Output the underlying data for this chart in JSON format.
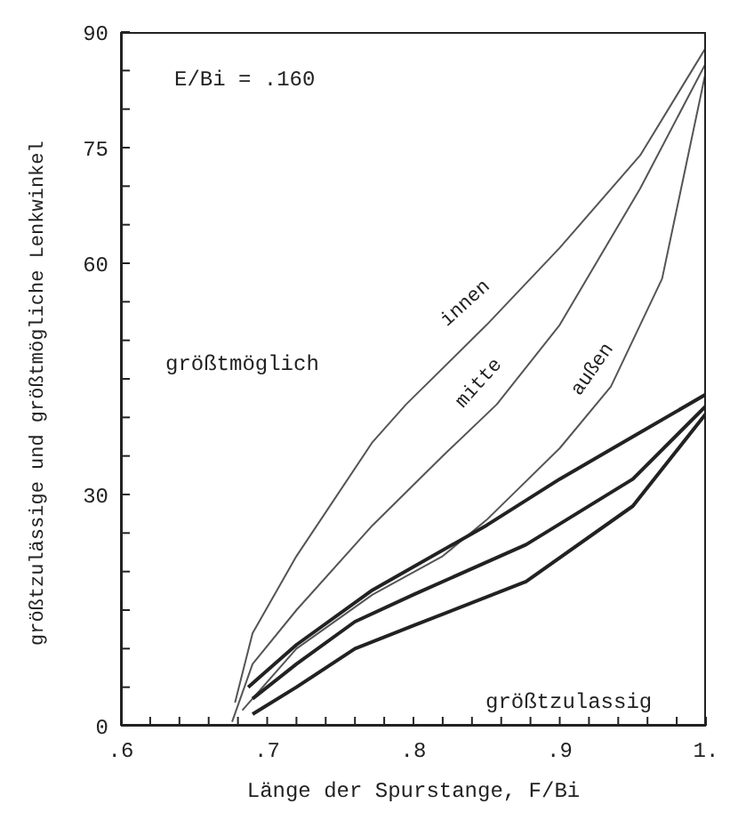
{
  "chart_data": {
    "type": "line",
    "xlabel": "Länge der Spurstange, F/Bi",
    "ylabel": "größtzulässige und größtmögliche Lenkwinkel",
    "xlim": [
      0.6,
      1.0
    ],
    "xticks": [
      {
        "value": 0.6,
        "label": ".6"
      },
      {
        "value": 0.62,
        "label": null
      },
      {
        "value": 0.64,
        "label": null
      },
      {
        "value": 0.66,
        "label": null
      },
      {
        "value": 0.68,
        "label": null
      },
      {
        "value": 0.7,
        "label": ".7"
      },
      {
        "value": 0.72,
        "label": null
      },
      {
        "value": 0.74,
        "label": null
      },
      {
        "value": 0.76,
        "label": null
      },
      {
        "value": 0.78,
        "label": null
      },
      {
        "value": 0.8,
        "label": ".8"
      },
      {
        "value": 0.82,
        "label": null
      },
      {
        "value": 0.84,
        "label": null
      },
      {
        "value": 0.86,
        "label": null
      },
      {
        "value": 0.88,
        "label": null
      },
      {
        "value": 0.9,
        "label": ".9"
      },
      {
        "value": 0.92,
        "label": null
      },
      {
        "value": 0.94,
        "label": null
      },
      {
        "value": 0.96,
        "label": null
      },
      {
        "value": 0.98,
        "label": null
      },
      {
        "value": 1.0,
        "label": "1."
      }
    ],
    "ylim": [
      0,
      90
    ],
    "yticks": [
      0,
      {
        "value": 5,
        "label": null
      },
      {
        "value": 10,
        "label": null
      },
      {
        "value": 15,
        "label": null
      },
      {
        "value": 20,
        "label": null
      },
      {
        "value": 25,
        "label": null
      },
      30,
      {
        "value": 35,
        "label": null
      },
      {
        "value": 40,
        "label": null
      },
      {
        "value": 45,
        "label": null
      },
      {
        "value": 50,
        "label": null
      },
      {
        "value": 55,
        "label": null
      },
      60,
      {
        "value": 65,
        "label": null
      },
      {
        "value": 70,
        "label": null
      },
      75,
      {
        "value": 80,
        "label": null
      },
      {
        "value": 85,
        "label": null
      },
      90
    ],
    "marker": "none",
    "line_style": "solid",
    "series": [
      {
        "name": "innen",
        "color": "#555555",
        "x": [
          0.678,
          0.69,
          0.72,
          0.772,
          0.795,
          0.85,
          0.9,
          0.955,
          1.0
        ],
        "values": [
          3,
          12,
          22,
          36.8,
          41.7,
          52,
          62,
          74,
          88
        ]
      },
      {
        "name": "mitte",
        "color": "#555555",
        "x": [
          0.676,
          0.69,
          0.72,
          0.772,
          0.82,
          0.857,
          0.9,
          0.955,
          1.0
        ],
        "values": [
          0.5,
          8,
          15,
          26,
          35,
          41.7,
          52,
          69.7,
          86
        ]
      },
      {
        "name": "außen",
        "color": "#555555",
        "x": [
          0.683,
          0.72,
          0.772,
          0.82,
          0.85,
          0.9,
          0.935,
          0.97,
          1.0
        ],
        "values": [
          2,
          10,
          17,
          22,
          26.7,
          36,
          44,
          58,
          85
        ]
      },
      {
        "color": "#222222",
        "x": [
          0.687,
          0.72,
          0.772,
          0.85,
          0.9,
          0.95,
          1.0
        ],
        "values": [
          5,
          10.5,
          17.6,
          26,
          32,
          37.5,
          43
        ]
      },
      {
        "color": "#222222",
        "x": [
          0.69,
          0.72,
          0.76,
          0.8,
          0.877,
          0.95,
          1.0
        ],
        "values": [
          3.5,
          8,
          13.5,
          17,
          23.5,
          32,
          41.5
        ]
      },
      {
        "color": "#222222",
        "x": [
          0.69,
          0.72,
          0.76,
          0.8,
          0.877,
          0.95,
          1.0
        ],
        "values": [
          1.5,
          5,
          10,
          13,
          18.7,
          28.5,
          40.5
        ]
      }
    ],
    "annotations": [
      "E/Bi = .160",
      "größtmöglich",
      "größtzulassig"
    ]
  }
}
